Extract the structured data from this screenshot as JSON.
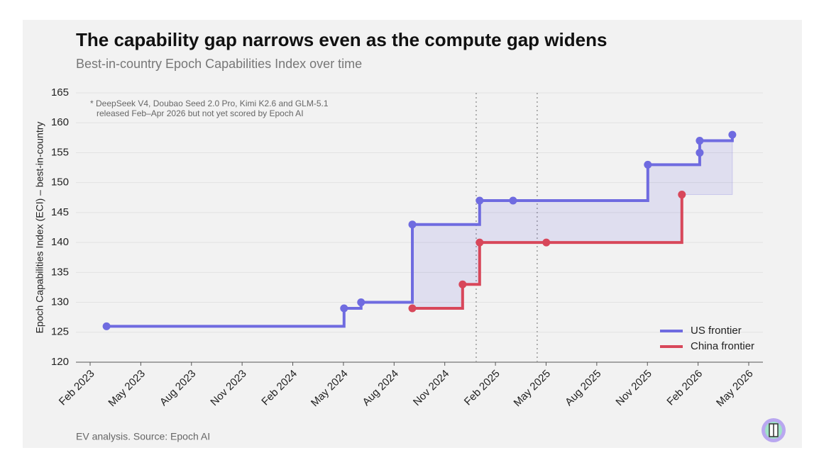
{
  "chart_data": {
    "type": "step",
    "title": "The capability gap narrows even as the compute gap widens",
    "subtitle": "Best-in-country Epoch Capabilities Index over time",
    "y_label": "Epoch Capabilities Index (ECI) – best-in-country",
    "annotation": [
      "* DeepSeek V4, Doubao Seed 2.0 Pro, Kimi K2.6 and GLM-5.1",
      "released Feb–Apr 2026 but not yet scored by Epoch AI"
    ],
    "source": "EV analysis. Source: Epoch AI",
    "xlim": [
      2023.013,
      2026.403
    ],
    "xticks": [
      {
        "value": 2023.083,
        "label": "Feb 2023"
      },
      {
        "value": 2023.333,
        "label": "May 2023"
      },
      {
        "value": 2023.583,
        "label": "Aug 2023"
      },
      {
        "value": 2023.833,
        "label": "Nov 2023"
      },
      {
        "value": 2024.083,
        "label": "Feb 2024"
      },
      {
        "value": 2024.333,
        "label": "May 2024"
      },
      {
        "value": 2024.583,
        "label": "Aug 2024"
      },
      {
        "value": 2024.833,
        "label": "Nov 2024"
      },
      {
        "value": 2025.083,
        "label": "Feb 2025"
      },
      {
        "value": 2025.333,
        "label": "May 2025"
      },
      {
        "value": 2025.583,
        "label": "Aug 2025"
      },
      {
        "value": 2025.833,
        "label": "Nov 2025"
      },
      {
        "value": 2026.083,
        "label": "Feb 2026"
      },
      {
        "value": 2026.333,
        "label": "May 2026"
      }
    ],
    "ylim": [
      120,
      165
    ],
    "yticks": [
      120,
      125,
      130,
      135,
      140,
      145,
      150,
      155,
      160,
      165
    ],
    "grid": true,
    "reference_lines": [
      2024.988,
      2025.289
    ],
    "legend": "lower right",
    "shade_gap": true,
    "series": [
      {
        "name": "US frontier",
        "color": "#6f6be0",
        "x": [
          2023.164,
          2024.336,
          2024.42,
          2024.673,
          2025.005,
          2025.17,
          2025.835,
          2026.091,
          2026.091,
          2026.252
        ],
        "values": [
          126,
          129,
          130,
          143,
          147,
          147,
          153,
          155,
          157,
          158
        ]
      },
      {
        "name": "China frontier",
        "color": "#d8475a",
        "x": [
          2024.673,
          2024.921,
          2025.005,
          2025.334,
          2026.003
        ],
        "values": [
          129,
          133,
          140,
          140,
          148
        ]
      }
    ]
  }
}
